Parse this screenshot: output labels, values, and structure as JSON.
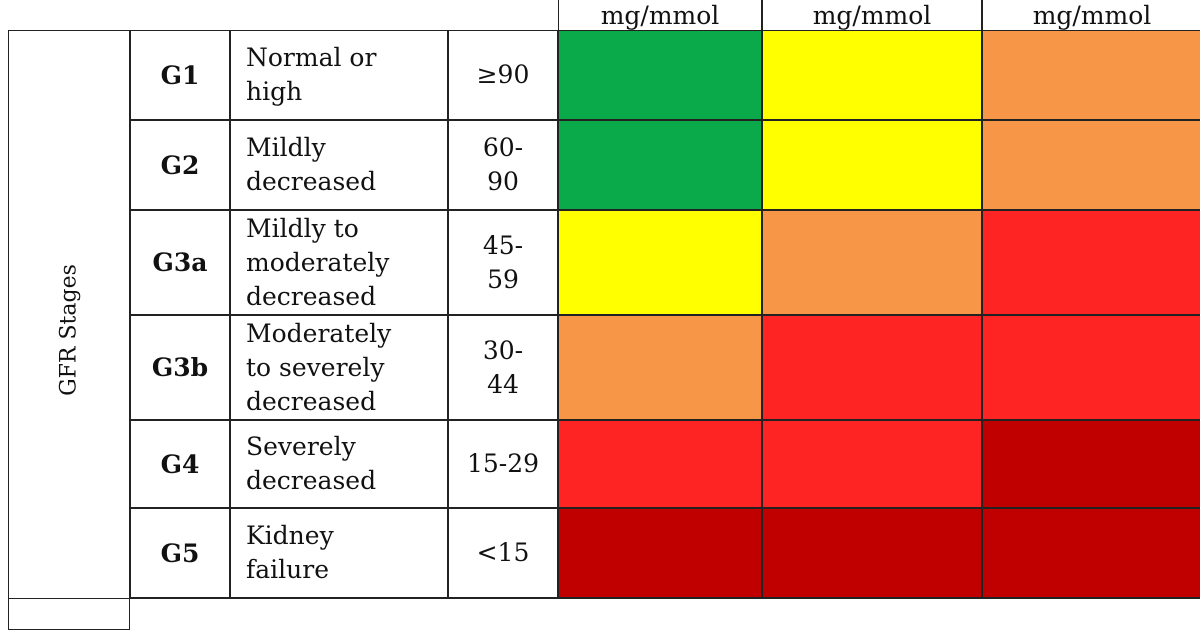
{
  "header": {
    "columns": [
      "mg/mmol",
      "mg/mmol",
      "mg/mmol"
    ]
  },
  "side_label": "GFR Stages",
  "rows": [
    {
      "stage": "G1",
      "description": [
        "Normal or",
        "high"
      ],
      "range": [
        "≥90"
      ],
      "colors": [
        "#0aaa4a",
        "#ffff00",
        "#f79646"
      ]
    },
    {
      "stage": "G2",
      "description": [
        "Mildly",
        "decreased"
      ],
      "range": [
        "60-",
        "90"
      ],
      "colors": [
        "#0aaa4a",
        "#ffff00",
        "#f79646"
      ]
    },
    {
      "stage": "G3a",
      "description": [
        "Mildly to",
        "moderately",
        "decreased"
      ],
      "range": [
        "45-",
        "59"
      ],
      "colors": [
        "#ffff00",
        "#f79646",
        "#ff2424"
      ]
    },
    {
      "stage": "G3b",
      "description": [
        "Moderately",
        "to severely",
        "decreased"
      ],
      "range": [
        "30-",
        "44"
      ],
      "colors": [
        "#f79646",
        "#ff2424",
        "#ff2424"
      ]
    },
    {
      "stage": "G4",
      "description": [
        "Severely",
        "decreased"
      ],
      "range": [
        "15-29"
      ],
      "colors": [
        "#ff2424",
        "#ff2424",
        "#c00000"
      ]
    },
    {
      "stage": "G5",
      "description": [
        "Kidney",
        "failure"
      ],
      "range": [
        "<15"
      ],
      "colors": [
        "#c00000",
        "#c00000",
        "#c00000"
      ]
    }
  ]
}
